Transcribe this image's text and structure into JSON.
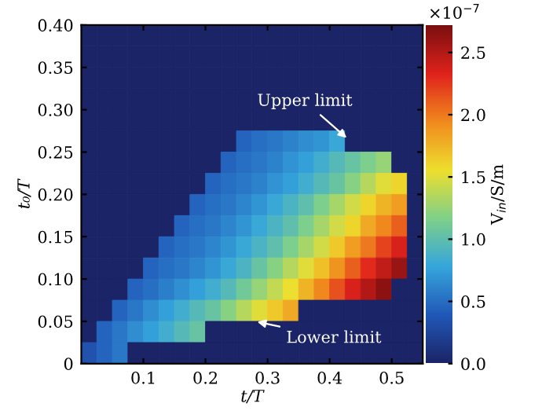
{
  "chart_data": {
    "type": "heatmap",
    "xlabel": "t/T",
    "ylabel": "t₀/T",
    "clabel": "V$_{in}$/S/m",
    "xlim": [
      0,
      0.55
    ],
    "ylim": [
      0,
      0.4
    ],
    "xticks": [
      0.1,
      0.2,
      0.3,
      0.4,
      0.5
    ],
    "yticks": [
      0,
      0.05,
      {
        "value": 0.1,
        "label": "0.10"
      },
      0.15,
      {
        "value": 0.2,
        "label": "0.20"
      },
      0.25,
      {
        "value": 0.3,
        "label": "0.30"
      },
      0.35,
      {
        "value": 0.4,
        "label": "0.40"
      }
    ],
    "clim": [
      0,
      2.72
    ],
    "cticks": [
      {
        "value": 0,
        "label": "0.0"
      },
      0.5,
      {
        "value": 1,
        "label": "1.0"
      },
      1.5,
      {
        "value": 2,
        "label": "2.0"
      },
      2.5
    ],
    "annotations": [
      "×10$^{−7}$",
      "Upper limit",
      "Lower limit"
    ],
    "cells": [
      [
        0,
        0,
        0,
        0,
        0,
        0,
        0,
        0,
        0,
        0,
        0,
        0,
        0,
        0,
        0,
        0,
        0,
        0,
        0,
        0,
        0,
        0
      ],
      [
        0,
        0,
        0,
        0,
        0,
        0,
        0,
        0,
        0,
        0,
        0,
        0,
        0,
        0,
        0,
        0,
        0,
        0,
        0,
        0,
        0,
        0
      ],
      [
        0,
        0,
        0,
        0,
        0,
        0,
        0,
        0,
        0,
        0,
        0,
        0,
        0,
        0,
        0,
        0,
        0,
        0,
        0,
        0,
        0,
        0
      ],
      [
        0,
        0,
        0,
        0,
        0,
        0,
        0,
        0,
        0,
        0,
        0,
        0,
        0,
        0,
        0,
        0,
        0,
        0,
        0,
        0,
        0,
        0
      ],
      [
        0,
        0,
        0,
        0,
        0,
        0,
        0,
        0,
        0,
        0,
        0,
        0,
        0,
        0,
        0,
        0,
        0,
        0,
        0,
        0,
        0,
        0
      ],
      [
        0,
        0,
        0,
        0,
        0,
        0,
        0,
        0,
        0,
        0,
        0.45,
        0.5,
        0.55,
        0.6,
        0.65,
        0.7,
        0.8,
        0,
        0,
        0,
        0,
        0
      ],
      [
        0,
        0,
        0,
        0,
        0,
        0,
        0,
        0,
        0,
        0.45,
        0.5,
        0.55,
        0.6,
        0.68,
        0.75,
        0.85,
        0.95,
        1.05,
        1.15,
        1.25,
        0,
        0
      ],
      [
        0,
        0,
        0,
        0,
        0,
        0,
        0,
        0,
        0.45,
        0.5,
        0.55,
        0.6,
        0.68,
        0.75,
        0.85,
        0.95,
        1.05,
        1.2,
        1.35,
        1.5,
        1.6,
        0
      ],
      [
        0,
        0,
        0,
        0,
        0,
        0,
        0,
        0.45,
        0.5,
        0.55,
        0.62,
        0.7,
        0.8,
        0.9,
        1.0,
        1.15,
        1.3,
        1.45,
        1.6,
        1.75,
        1.85,
        0
      ],
      [
        0,
        0,
        0,
        0,
        0,
        0,
        0.45,
        0.5,
        0.55,
        0.62,
        0.7,
        0.8,
        0.9,
        1.0,
        1.15,
        1.3,
        1.45,
        1.6,
        1.8,
        1.95,
        2.1,
        0
      ],
      [
        0,
        0,
        0,
        0,
        0,
        0.45,
        0.5,
        0.55,
        0.62,
        0.7,
        0.8,
        0.9,
        1.0,
        1.15,
        1.3,
        1.45,
        1.65,
        1.85,
        2.0,
        2.2,
        2.35,
        0
      ],
      [
        0,
        0,
        0,
        0,
        0.45,
        0.5,
        0.55,
        0.62,
        0.7,
        0.8,
        0.9,
        1.05,
        1.2,
        1.35,
        1.5,
        1.7,
        1.9,
        2.1,
        2.3,
        2.45,
        2.6,
        0
      ],
      [
        0,
        0,
        0,
        0.45,
        0.5,
        0.58,
        0.66,
        0.75,
        0.85,
        0.95,
        1.1,
        1.25,
        1.4,
        1.55,
        1.75,
        1.95,
        2.15,
        2.35,
        2.5,
        2.65,
        0,
        0
      ],
      [
        0,
        0,
        0.45,
        0.55,
        0.65,
        0.75,
        0.85,
        0.95,
        1.05,
        1.2,
        1.35,
        1.5,
        1.65,
        1.8,
        0,
        0,
        0,
        0,
        0,
        0,
        0,
        0
      ],
      [
        0,
        0.45,
        0.55,
        0.65,
        0.75,
        0.85,
        0.95,
        1.05,
        0,
        0,
        0,
        0,
        0,
        0,
        0,
        0,
        0,
        0,
        0,
        0,
        0,
        0
      ],
      [
        0.35,
        0.45,
        0.55,
        0,
        0,
        0,
        0,
        0,
        0,
        0,
        0,
        0,
        0,
        0,
        0,
        0,
        0,
        0,
        0,
        0,
        0,
        0
      ]
    ]
  }
}
